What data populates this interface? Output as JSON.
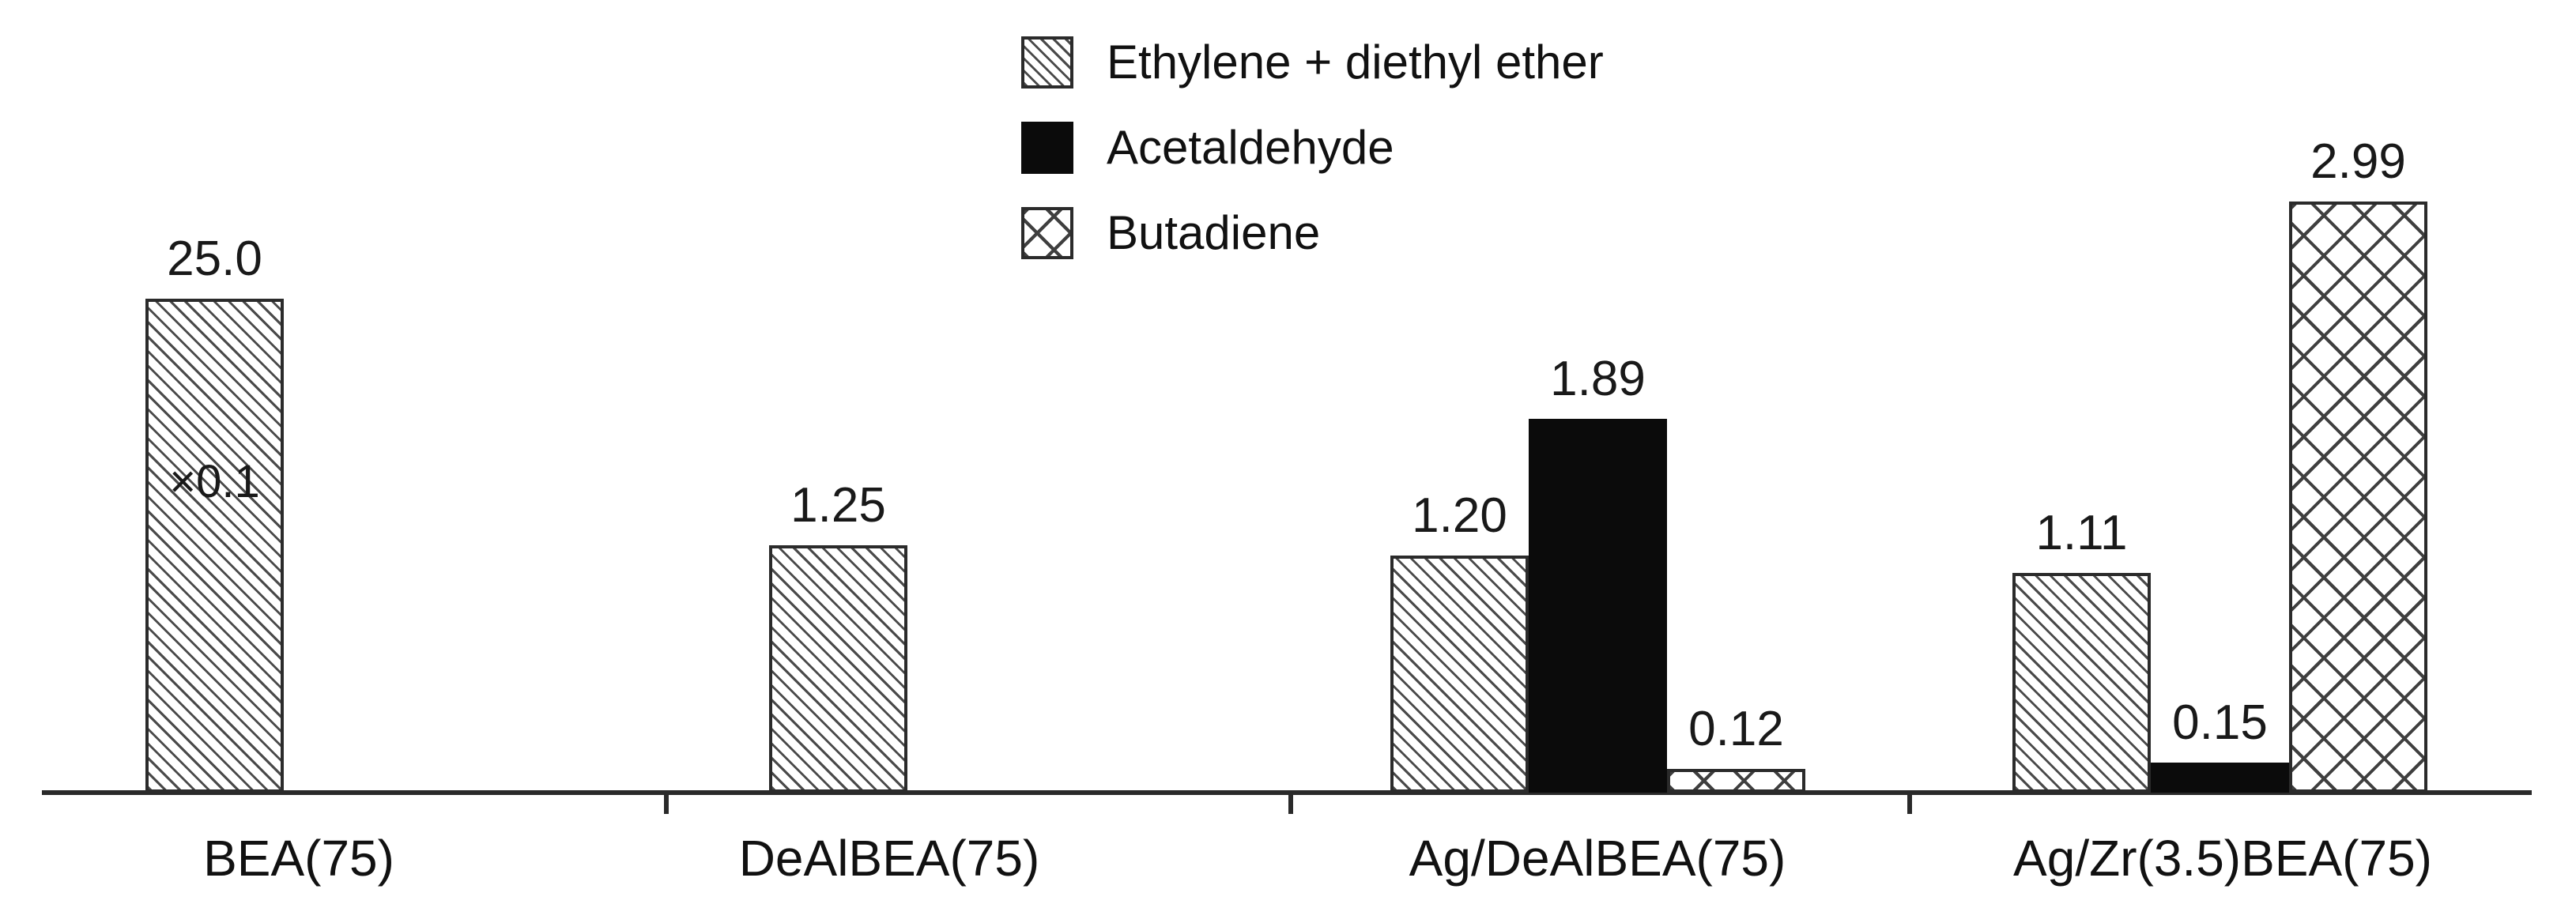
{
  "chart_data": {
    "type": "bar",
    "title": "",
    "xlabel": "",
    "ylabel": "",
    "grid": false,
    "y_axis_shown": false,
    "ylim": [
      0,
      3.2
    ],
    "legend_position": "top-center",
    "categories": [
      "BEA(75)",
      "DeAlBEA(75)",
      "Ag/DeAlBEA(75)",
      "Ag/Zr(3.5)BEA(75)"
    ],
    "series": [
      {
        "name": "Ethylene + diethyl ether",
        "pattern": "diagonal-hatch"
      },
      {
        "name": "Acetaldehyde",
        "pattern": "solid-black"
      },
      {
        "name": "Butadiene",
        "pattern": "cross-hatch"
      }
    ],
    "groups": [
      {
        "category": "BEA(75)",
        "bars": [
          {
            "series": "Ethylene + diethyl ether",
            "label": "25.0",
            "value": 25.0,
            "plotted": 2.5,
            "note": "×0.1"
          }
        ]
      },
      {
        "category": "DeAlBEA(75)",
        "bars": [
          {
            "series": "Ethylene + diethyl ether",
            "label": "1.25",
            "value": 1.25,
            "plotted": 1.25
          }
        ]
      },
      {
        "category": "Ag/DeAlBEA(75)",
        "bars": [
          {
            "series": "Ethylene + diethyl ether",
            "label": "1.20",
            "value": 1.2,
            "plotted": 1.2
          },
          {
            "series": "Acetaldehyde",
            "label": "1.89",
            "value": 1.89,
            "plotted": 1.89
          },
          {
            "series": "Butadiene",
            "label": "0.12",
            "value": 0.12,
            "plotted": 0.12
          }
        ]
      },
      {
        "category": "Ag/Zr(3.5)BEA(75)",
        "bars": [
          {
            "series": "Ethylene + diethyl ether",
            "label": "1.11",
            "value": 1.11,
            "plotted": 1.11
          },
          {
            "series": "Acetaldehyde",
            "label": "0.15",
            "value": 0.15,
            "plotted": 0.15
          },
          {
            "series": "Butadiene",
            "label": "2.99",
            "value": 2.99,
            "plotted": 2.99
          }
        ]
      }
    ],
    "annotations": [
      {
        "text": "×0.1",
        "meaning": "first bar of BEA(75) is drawn at one tenth of its value"
      }
    ],
    "ink_color": "#1a1a1a",
    "background_color": "#ffffff"
  }
}
